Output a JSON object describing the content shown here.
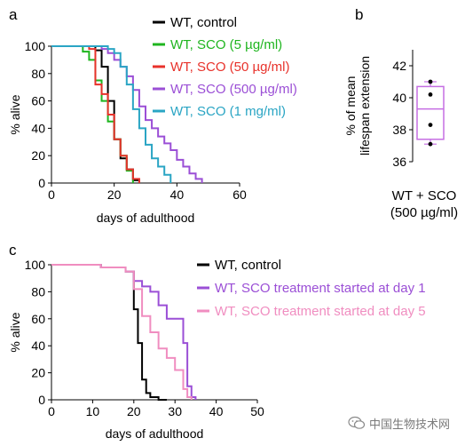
{
  "chart_data": [
    {
      "panel_label": "a",
      "type": "line",
      "step": true,
      "xlabel": "days of adulthood",
      "ylabel": "% alive",
      "xlim": [
        0,
        60
      ],
      "ylim": [
        0,
        100
      ],
      "xticks": [
        0,
        20,
        40,
        60
      ],
      "yticks": [
        0,
        20,
        40,
        60,
        80,
        100
      ],
      "legend_position": "top-right",
      "series": [
        {
          "name": "WT, control",
          "color": "#000000",
          "x": [
            0,
            14,
            16,
            18,
            20,
            22,
            24,
            26,
            28
          ],
          "y": [
            100,
            97,
            85,
            60,
            32,
            18,
            10,
            2,
            0
          ]
        },
        {
          "name": "WT, SCO (5 µg/ml)",
          "color": "#1fb51f",
          "x": [
            0,
            10,
            12,
            14,
            16,
            18,
            20,
            22,
            24,
            26
          ],
          "y": [
            100,
            96,
            90,
            75,
            60,
            45,
            32,
            20,
            9,
            0
          ]
        },
        {
          "name": "WT, SCO (50 µg/ml)",
          "color": "#e8322b",
          "x": [
            0,
            12,
            14,
            16,
            18,
            20,
            22,
            24,
            26,
            28
          ],
          "y": [
            100,
            98,
            72,
            65,
            50,
            32,
            20,
            10,
            3,
            0
          ]
        },
        {
          "name": "WT, SCO (500 µg/ml)",
          "color": "#9b4fd6",
          "x": [
            0,
            16,
            18,
            20,
            22,
            24,
            26,
            28,
            30,
            32,
            34,
            36,
            38,
            40,
            42,
            44,
            46,
            48
          ],
          "y": [
            100,
            98,
            95,
            90,
            85,
            78,
            68,
            56,
            46,
            40,
            34,
            29,
            24,
            17,
            12,
            7,
            3,
            0
          ]
        },
        {
          "name": "WT, SCO (1 mg/ml)",
          "color": "#2aa5c4",
          "x": [
            0,
            18,
            20,
            22,
            24,
            26,
            28,
            30,
            32,
            34,
            36,
            38
          ],
          "y": [
            100,
            98,
            95,
            85,
            72,
            54,
            40,
            28,
            18,
            12,
            6,
            0
          ]
        }
      ]
    },
    {
      "panel_label": "b",
      "type": "box",
      "xlabel_lines": [
        "WT + SCO",
        "(500 µg/ml)"
      ],
      "ylabel_lines": [
        "% of mean",
        "lifespan extension"
      ],
      "ylim": [
        36,
        43
      ],
      "yticks": [
        36,
        38,
        40,
        42
      ],
      "box": {
        "min": 37.1,
        "q1": 37.4,
        "median": 39.3,
        "q3": 40.7,
        "max": 41
      },
      "points": [
        41.0,
        40.2,
        38.3,
        37.1
      ],
      "color": "#c56ee3"
    },
    {
      "panel_label": "c",
      "type": "line",
      "step": true,
      "xlabel": "days of adulthood",
      "ylabel": "% alive",
      "xlim": [
        0,
        50
      ],
      "ylim": [
        0,
        100
      ],
      "xticks": [
        0,
        10,
        20,
        30,
        40,
        50
      ],
      "yticks": [
        0,
        20,
        40,
        60,
        80,
        100
      ],
      "legend_position": "top-right",
      "series": [
        {
          "name": "WT, control",
          "color": "#000000",
          "x": [
            0,
            12,
            18,
            20,
            21,
            22,
            23,
            24,
            26,
            28
          ],
          "y": [
            100,
            98,
            95,
            67,
            42,
            15,
            5,
            2,
            0,
            0
          ]
        },
        {
          "name": "WT, SCO treatment started at day 1",
          "color": "#9b4fd6",
          "x": [
            0,
            12,
            18,
            20,
            22,
            24,
            26,
            28,
            30,
            32,
            33,
            34,
            35
          ],
          "y": [
            100,
            98,
            95,
            88,
            84,
            80,
            70,
            60,
            60,
            42,
            10,
            2,
            0
          ]
        },
        {
          "name": "WT, SCO treatment started at day 5",
          "color": "#f08dc0",
          "x": [
            0,
            12,
            18,
            20,
            22,
            24,
            26,
            28,
            30,
            32,
            33,
            34
          ],
          "y": [
            100,
            98,
            95,
            82,
            62,
            50,
            38,
            31,
            22,
            8,
            2,
            0
          ]
        }
      ]
    }
  ],
  "watermark": "中国生物技术网"
}
